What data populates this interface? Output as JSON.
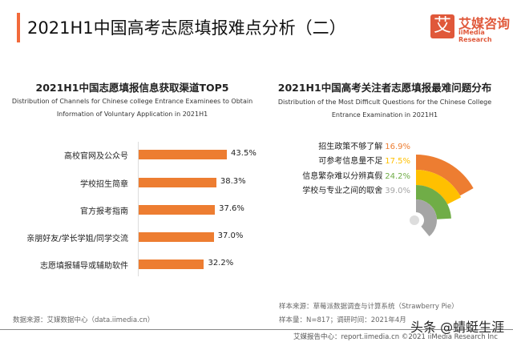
{
  "header": {
    "title": "2021H1中国高考志愿填报难点分析（二）",
    "logo_mark": "艾",
    "logo_cn": "艾媒咨询",
    "logo_en": "iiMedia Research",
    "accent_color": "#f26a3b"
  },
  "chart_data": [
    {
      "type": "bar",
      "orientation": "horizontal",
      "title": "2021H1中国志愿填报信息获取渠道TOP5",
      "subtitle": "Distribution of Channels for Chinese college Entrance Examinees to Obtain Information of Voluntary Application in 2021H1",
      "categories": [
        "高校官网及公众号",
        "学校招生简章",
        "官方报考指南",
        "亲朋好友/学长学姐/同学交流",
        "志愿填报辅导或辅助软件"
      ],
      "values": [
        43.5,
        38.3,
        37.6,
        37.0,
        32.2
      ],
      "labels": [
        "43.5%",
        "38.3%",
        "37.6%",
        "37.0%",
        "32.2%"
      ],
      "unit": "%",
      "color": "#ed7d31"
    },
    {
      "type": "radial-bar",
      "title": "2021H1中国高考关注者志愿填报最难问题分布",
      "subtitle": "Distribution of the Most Difficult Questions for the Chinese College Entrance Examination in 2021H1",
      "categories": [
        "招生政策不够了解",
        "可参考信息量不足",
        "信息繁杂难以分辨真假",
        "学校与专业之间的取舍"
      ],
      "values": [
        16.9,
        17.5,
        24.2,
        39.0
      ],
      "labels": [
        "16.9%",
        "17.5%",
        "24.2%",
        "39.0%"
      ],
      "unit": "%",
      "colors": [
        "#ed7d31",
        "#ffc000",
        "#70ad47",
        "#a5a5a5"
      ]
    }
  ],
  "footer": {
    "source_left": "数据来源：艾媒数据中心（data.iimedia.cn）",
    "sample_source": "样本来源：草莓派数据调查与计算系统（Strawberry Pie）",
    "sample_size": "样本量：N=817；调研时间：2021年4月",
    "report": "艾媒报告中心：report.iimedia.cn   ©2021  iiMedia Research  Inc",
    "watermark": "头条 @蜻蜓生涯"
  }
}
